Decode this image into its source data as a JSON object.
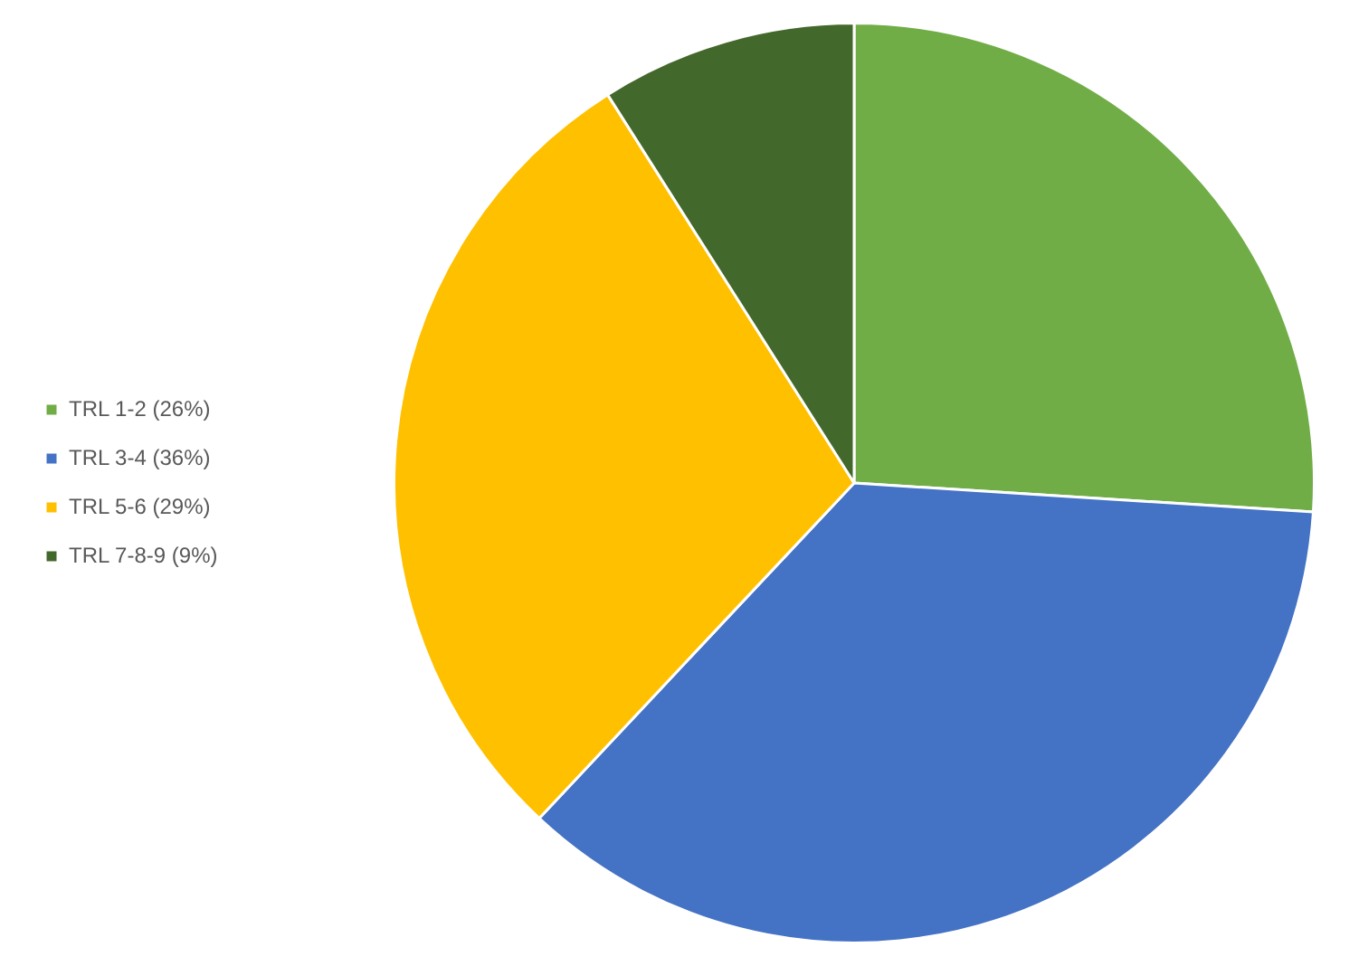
{
  "chart_data": {
    "type": "pie",
    "categories": [
      "TRL 1-2 (26%)",
      "TRL 3-4 (36%)",
      "TRL 5-6 (29%)",
      "TRL 7-8-9 (9%)"
    ],
    "values": [
      26,
      36,
      29,
      9
    ],
    "colors": [
      "#70ad47",
      "#4472c4",
      "#ffc000",
      "#43682b"
    ],
    "legend": "left"
  }
}
